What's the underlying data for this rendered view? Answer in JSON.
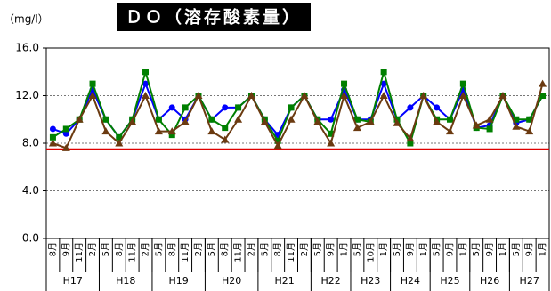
{
  "chart_data": {
    "type": "line",
    "title": "ＤＯ（溶存酸素量）",
    "y_unit_label": "（mg/l）",
    "groups": [
      {
        "label": "H17",
        "categories": [
          "8月",
          "9月",
          "11月",
          "2月"
        ]
      },
      {
        "label": "H18",
        "categories": [
          "5月",
          "8月",
          "11月",
          "2月"
        ]
      },
      {
        "label": "H19",
        "categories": [
          "5月",
          "8月",
          "11月",
          "2月"
        ]
      },
      {
        "label": "H20",
        "categories": [
          "5月",
          "8月",
          "11月",
          "2月"
        ]
      },
      {
        "label": "H21",
        "categories": [
          "5月",
          "8月",
          "11月",
          "2月"
        ]
      },
      {
        "label": "H22",
        "categories": [
          "5月",
          "9月",
          "1月"
        ]
      },
      {
        "label": "H23",
        "categories": [
          "5月",
          "10月",
          "1月"
        ]
      },
      {
        "label": "H24",
        "categories": [
          "5月",
          "9月",
          "1月"
        ]
      },
      {
        "label": "H25",
        "categories": [
          "5月",
          "9月",
          "1月"
        ]
      },
      {
        "label": "H26",
        "categories": [
          "5月",
          "9月",
          "1月"
        ]
      },
      {
        "label": "H27",
        "categories": [
          "5月",
          "9月",
          "1月"
        ]
      }
    ],
    "series": [
      {
        "color": "#0000ff",
        "marker": "circle",
        "values": [
          9.2,
          8.8,
          10,
          12.5,
          10,
          8.5,
          10,
          13,
          10,
          11,
          10,
          12,
          10,
          11,
          11,
          12,
          10,
          8.7,
          11,
          12,
          10,
          10,
          12.5,
          10,
          10,
          13,
          10,
          11,
          12,
          11,
          10,
          12.5,
          9.3,
          9.5,
          12,
          9.7,
          10,
          12
        ]
      },
      {
        "color": "#008000",
        "marker": "square",
        "values": [
          8.5,
          9.2,
          10,
          13,
          10,
          8.5,
          10,
          14,
          10,
          8.7,
          11,
          12,
          10,
          9.3,
          11,
          12,
          10,
          8.2,
          11,
          12,
          10,
          8.8,
          13,
          10,
          9.8,
          14,
          10,
          8,
          12,
          10,
          10,
          13,
          9.3,
          9.2,
          12,
          10,
          10,
          12
        ]
      },
      {
        "color": "#6b3a10",
        "marker": "triangle",
        "values": [
          8.0,
          7.6,
          10,
          12,
          9,
          8,
          9.8,
          12,
          9,
          9,
          9.8,
          12,
          9,
          8.3,
          10,
          12,
          9.8,
          7.8,
          10,
          12,
          9.8,
          8,
          12,
          9.3,
          9.8,
          12,
          9.7,
          8.4,
          12,
          9.8,
          9,
          12,
          9.5,
          10,
          12,
          9.4,
          9,
          13
        ]
      }
    ],
    "reference_line": {
      "value": 7.5,
      "color": "#e00000"
    },
    "ylim": [
      0,
      16
    ],
    "yticks": [
      {
        "value": 0,
        "label": "0.0"
      },
      {
        "value": 4,
        "label": "4.0"
      },
      {
        "value": 8,
        "label": "8.0"
      },
      {
        "value": 12,
        "label": "12.0"
      },
      {
        "value": 16,
        "label": "16.0"
      }
    ],
    "grid": true
  }
}
